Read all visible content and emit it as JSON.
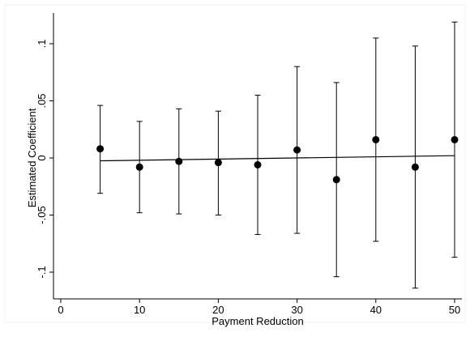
{
  "chart_data": {
    "type": "scatter",
    "title": "",
    "xlabel": "Payment Reduction",
    "ylabel": "Estimated Coefficient",
    "xlim": [
      0,
      50
    ],
    "ylim": [
      -0.12,
      0.125
    ],
    "x_ticks": [
      0,
      10,
      20,
      30,
      40,
      50
    ],
    "x_tick_labels": [
      "0",
      "10",
      "20",
      "30",
      "40",
      "50"
    ],
    "y_ticks": [
      0.1,
      0.05,
      0,
      -0.05,
      -0.1
    ],
    "y_tick_labels": [
      ".1",
      ".05",
      "0",
      "-.05",
      "-.1"
    ],
    "grid": false,
    "legend": "none",
    "points": [
      {
        "x": 5,
        "y": 0.008,
        "lo": -0.031,
        "hi": 0.046
      },
      {
        "x": 10,
        "y": -0.008,
        "lo": -0.048,
        "hi": 0.032
      },
      {
        "x": 15,
        "y": -0.003,
        "lo": -0.049,
        "hi": 0.043
      },
      {
        "x": 20,
        "y": -0.004,
        "lo": -0.05,
        "hi": 0.041
      },
      {
        "x": 25,
        "y": -0.006,
        "lo": -0.067,
        "hi": 0.055
      },
      {
        "x": 30,
        "y": 0.007,
        "lo": -0.066,
        "hi": 0.08
      },
      {
        "x": 35,
        "y": -0.019,
        "lo": -0.104,
        "hi": 0.066
      },
      {
        "x": 40,
        "y": 0.016,
        "lo": -0.073,
        "hi": 0.105
      },
      {
        "x": 45,
        "y": -0.008,
        "lo": -0.114,
        "hi": 0.098
      },
      {
        "x": 50,
        "y": 0.016,
        "lo": -0.087,
        "hi": 0.119
      }
    ],
    "fit_line": {
      "x": [
        5,
        50
      ],
      "y": [
        -0.0025,
        0.002
      ]
    }
  }
}
